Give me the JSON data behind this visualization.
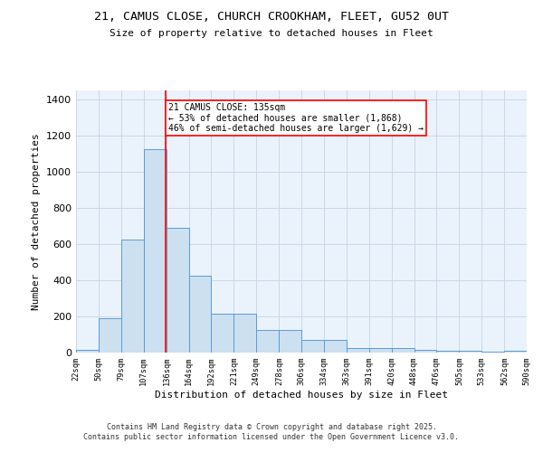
{
  "title1": "21, CAMUS CLOSE, CHURCH CROOKHAM, FLEET, GU52 0UT",
  "title2": "Size of property relative to detached houses in Fleet",
  "xlabel": "Distribution of detached houses by size in Fleet",
  "ylabel": "Number of detached properties",
  "bar_edges": [
    22,
    50,
    79,
    107,
    136,
    164,
    192,
    221,
    249,
    278,
    306,
    334,
    363,
    391,
    420,
    448,
    476,
    505,
    533,
    562,
    590
  ],
  "bar_heights": [
    15,
    190,
    625,
    1125,
    690,
    425,
    215,
    215,
    125,
    125,
    70,
    70,
    25,
    25,
    25,
    15,
    10,
    10,
    5,
    10
  ],
  "bar_color": "#cce0f0",
  "bar_edgecolor": "#5b9bd5",
  "grid_color": "#c8d8e8",
  "background_color": "#eaf3fb",
  "red_line_x": 135,
  "annotation_text": "21 CAMUS CLOSE: 135sqm\n← 53% of detached houses are smaller (1,868)\n46% of semi-detached houses are larger (1,629) →",
  "annotation_box_color": "white",
  "annotation_box_edgecolor": "red",
  "ylim": [
    0,
    1450
  ],
  "yticks": [
    0,
    200,
    400,
    600,
    800,
    1000,
    1200,
    1400
  ],
  "footer1": "Contains HM Land Registry data © Crown copyright and database right 2025.",
  "footer2": "Contains public sector information licensed under the Open Government Licence v3.0."
}
